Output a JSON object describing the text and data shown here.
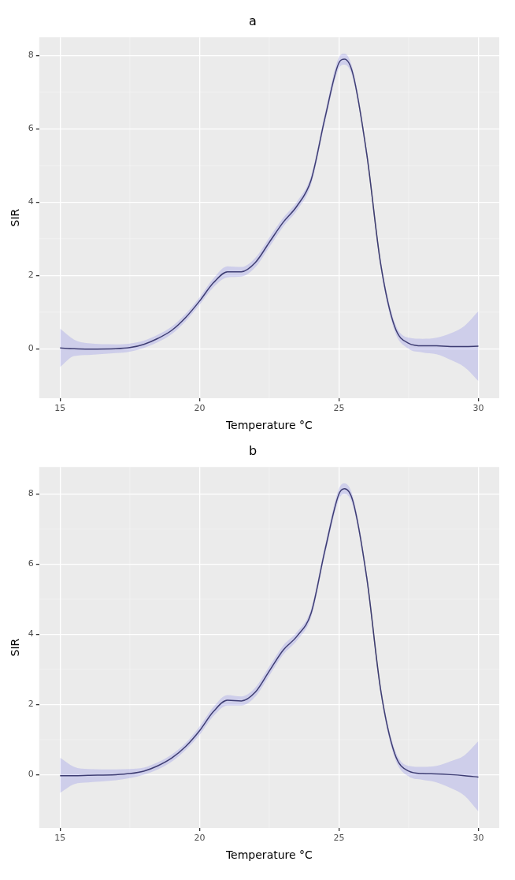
{
  "chart_data": [
    {
      "type": "line",
      "title": "a",
      "xlabel": "Temperature °C",
      "ylabel": "SIR",
      "xlim": [
        14.25,
        30.75
      ],
      "xticks": [
        15,
        20,
        25,
        30
      ],
      "ylim": [
        -1.35,
        8.5
      ],
      "yticks": [
        0,
        2,
        4,
        6,
        8
      ],
      "grid": true,
      "legend": false,
      "marker": "none",
      "series": [
        {
          "color": "#2b2a4c",
          "x": [
            15,
            15.5,
            16,
            17,
            17.5,
            18,
            18.5,
            19,
            19.5,
            20,
            20.5,
            21,
            21.5,
            22,
            22.5,
            23,
            23.5,
            24,
            24.5,
            25,
            25.2,
            25.5,
            26,
            26.5,
            27,
            27.5,
            28,
            28.5,
            29,
            29.5,
            30
          ],
          "values": [
            0.02,
            0.0,
            -0.01,
            0.0,
            0.03,
            0.12,
            0.28,
            0.5,
            0.85,
            1.3,
            1.8,
            2.1,
            2.1,
            2.35,
            2.9,
            3.45,
            3.9,
            4.6,
            6.3,
            7.8,
            7.9,
            7.5,
            5.3,
            2.3,
            0.6,
            0.15,
            0.08,
            0.08,
            0.06,
            0.06,
            0.07
          ],
          "lower": [
            -0.5,
            -0.2,
            -0.17,
            -0.12,
            -0.08,
            0.02,
            0.18,
            0.4,
            0.75,
            1.2,
            1.68,
            1.95,
            1.97,
            2.22,
            2.77,
            3.33,
            3.78,
            4.48,
            6.17,
            7.65,
            7.75,
            7.38,
            5.18,
            2.18,
            0.48,
            0.0,
            -0.1,
            -0.15,
            -0.3,
            -0.5,
            -0.88
          ],
          "upper": [
            0.55,
            0.25,
            0.15,
            0.12,
            0.14,
            0.22,
            0.38,
            0.6,
            0.95,
            1.4,
            1.92,
            2.25,
            2.23,
            2.48,
            3.03,
            3.57,
            4.02,
            4.72,
            6.43,
            7.95,
            8.05,
            7.62,
            5.42,
            2.42,
            0.72,
            0.3,
            0.27,
            0.3,
            0.42,
            0.62,
            1.02
          ]
        }
      ]
    },
    {
      "type": "line",
      "title": "b",
      "xlabel": "Temperature °C",
      "ylabel": "SIR",
      "xlim": [
        14.25,
        30.75
      ],
      "xticks": [
        15,
        20,
        25,
        30
      ],
      "ylim": [
        -1.52,
        8.77
      ],
      "yticks": [
        0,
        2,
        4,
        6,
        8
      ],
      "grid": true,
      "legend": false,
      "marker": "none",
      "series": [
        {
          "color": "#2b2a4c",
          "x": [
            15,
            15.5,
            16,
            17,
            17.5,
            18,
            18.5,
            19,
            19.5,
            20,
            20.5,
            21,
            21.5,
            22,
            22.5,
            23,
            23.5,
            24,
            24.5,
            25,
            25.2,
            25.5,
            26,
            26.5,
            27,
            27.5,
            28,
            28.5,
            29,
            29.5,
            30
          ],
          "values": [
            -0.03,
            -0.03,
            -0.02,
            0.0,
            0.03,
            0.1,
            0.25,
            0.47,
            0.8,
            1.25,
            1.8,
            2.12,
            2.1,
            2.35,
            2.95,
            3.55,
            3.95,
            4.6,
            6.4,
            8.0,
            8.15,
            7.8,
            5.6,
            2.4,
            0.6,
            0.1,
            0.03,
            0.02,
            0.0,
            -0.03,
            -0.07
          ],
          "lower": [
            -0.52,
            -0.27,
            -0.22,
            -0.16,
            -0.1,
            0.0,
            0.15,
            0.37,
            0.7,
            1.13,
            1.67,
            1.97,
            1.97,
            2.22,
            2.82,
            3.42,
            3.83,
            4.48,
            6.27,
            7.85,
            8.0,
            7.67,
            5.47,
            2.28,
            0.48,
            -0.05,
            -0.15,
            -0.22,
            -0.38,
            -0.6,
            -1.05
          ],
          "upper": [
            0.48,
            0.22,
            0.16,
            0.15,
            0.16,
            0.2,
            0.35,
            0.57,
            0.9,
            1.37,
            1.93,
            2.27,
            2.23,
            2.48,
            3.08,
            3.68,
            4.07,
            4.72,
            6.53,
            8.15,
            8.3,
            7.93,
            5.73,
            2.52,
            0.72,
            0.25,
            0.22,
            0.25,
            0.38,
            0.55,
            0.95
          ]
        }
      ]
    }
  ]
}
